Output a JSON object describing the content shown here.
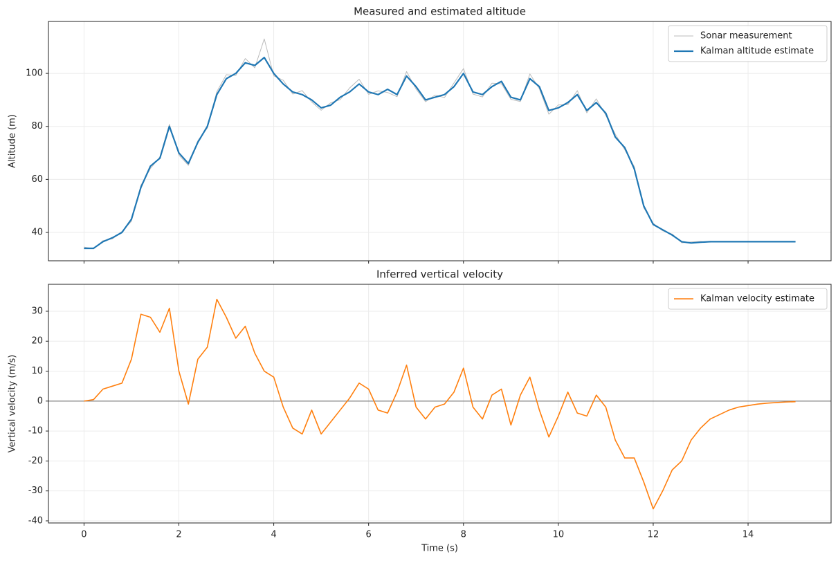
{
  "chart_data": [
    {
      "type": "line",
      "title": "Measured and estimated altitude",
      "ylabel": "Altitude (m)",
      "x": [
        0,
        0.2,
        0.4,
        0.6,
        0.8,
        1,
        1.2,
        1.4,
        1.6,
        1.8,
        2,
        2.2,
        2.4,
        2.6,
        2.8,
        3,
        3.2,
        3.4,
        3.6,
        3.8,
        4,
        4.2,
        4.4,
        4.6,
        4.8,
        5,
        5.2,
        5.4,
        5.6,
        5.8,
        6,
        6.2,
        6.4,
        6.6,
        6.8,
        7,
        7.2,
        7.4,
        7.6,
        7.8,
        8,
        8.2,
        8.4,
        8.6,
        8.8,
        9,
        9.2,
        9.4,
        9.6,
        9.8,
        10,
        10.2,
        10.4,
        10.6,
        10.8,
        11,
        11.2,
        11.4,
        11.6,
        11.8,
        12,
        12.2,
        12.4,
        12.6,
        12.8,
        13,
        13.2,
        13.4,
        13.6,
        13.8,
        14,
        14.2,
        14.4,
        14.6,
        14.8,
        15
      ],
      "series": [
        {
          "name": "Sonar measurement",
          "color": "#bbbbbb",
          "linewidth": 1,
          "values": [
            34.5,
            33.8,
            36.9,
            37.6,
            40.4,
            44.2,
            57.8,
            64.1,
            68.5,
            80.8,
            69.2,
            65.3,
            74.6,
            79.4,
            93.1,
            99.5,
            99.2,
            105.6,
            102.1,
            113,
            99.1,
            97.4,
            92.2,
            93.5,
            89.2,
            86.1,
            88.9,
            90.1,
            94.5,
            97.8,
            92.1,
            93.4,
            92.8,
            91.2,
            100.7,
            94.1,
            89.3,
            91.8,
            90.9,
            96.4,
            101.8,
            92.2,
            91.1,
            96.3,
            96.1,
            90.2,
            89.4,
            99.8,
            94.2,
            84.6,
            88.1,
            88.2,
            93.5,
            85.1,
            90.4,
            84.2,
            77.1,
            71.2,
            64.9,
            49.3,
            43.5,
            40.6,
            39.4,
            36.1,
            36.4,
            36.6,
            36.3,
            36.6,
            36.4,
            36.5,
            36.6,
            36.4,
            36.5,
            36.5,
            36.6,
            36.5
          ]
        },
        {
          "name": "Kalman altitude estimate",
          "color": "#1f77b4",
          "linewidth": 2.2,
          "values": [
            34,
            34,
            36.5,
            38,
            40,
            45,
            57,
            65,
            68,
            80,
            70,
            66,
            74,
            80,
            92,
            98,
            100,
            104,
            103,
            106,
            100,
            96,
            93,
            92,
            90,
            87,
            88,
            91,
            93,
            96,
            93,
            92,
            94,
            92,
            99,
            95,
            90,
            91,
            92,
            95,
            100,
            93,
            92,
            95,
            97,
            91,
            90,
            98,
            95,
            86,
            87,
            89,
            92,
            86,
            89,
            85,
            76,
            72,
            64,
            50,
            43,
            41,
            39,
            36.5,
            36,
            36.3,
            36.5,
            36.5,
            36.5,
            36.5,
            36.5,
            36.5,
            36.5,
            36.5,
            36.5,
            36.5
          ]
        }
      ],
      "xlim": [
        -0.75,
        15.75
      ],
      "xticks": [
        0,
        2,
        4,
        6,
        8,
        10,
        12,
        14
      ],
      "show_xtick_labels": false,
      "ylim": [
        29.3,
        119.6
      ],
      "yticks": [
        40,
        60,
        80,
        100
      ],
      "grid": true,
      "legend": "upper-right"
    },
    {
      "type": "line",
      "title": "Inferred vertical velocity",
      "xlabel": "Time (s)",
      "ylabel": "Vertical velocity (m/s)",
      "x": [
        0,
        0.2,
        0.4,
        0.6,
        0.8,
        1,
        1.2,
        1.4,
        1.6,
        1.8,
        2,
        2.2,
        2.4,
        2.6,
        2.8,
        3,
        3.2,
        3.4,
        3.6,
        3.8,
        4,
        4.2,
        4.4,
        4.6,
        4.8,
        5,
        5.2,
        5.4,
        5.6,
        5.8,
        6,
        6.2,
        6.4,
        6.6,
        6.8,
        7,
        7.2,
        7.4,
        7.6,
        7.8,
        8,
        8.2,
        8.4,
        8.6,
        8.8,
        9,
        9.2,
        9.4,
        9.6,
        9.8,
        10,
        10.2,
        10.4,
        10.6,
        10.8,
        11,
        11.2,
        11.4,
        11.6,
        11.8,
        12,
        12.2,
        12.4,
        12.6,
        12.8,
        13,
        13.2,
        13.4,
        13.6,
        13.8,
        14,
        14.2,
        14.4,
        14.6,
        14.8,
        15
      ],
      "series": [
        {
          "name": "Kalman velocity estimate",
          "color": "#ff7f0e",
          "linewidth": 1.6,
          "values": [
            0,
            0.5,
            4,
            5,
            6,
            14,
            29,
            28,
            23,
            31,
            10,
            -1,
            14,
            18,
            34,
            28,
            21,
            25,
            16,
            10,
            8,
            -2,
            -9,
            -11,
            -3,
            -11,
            -7,
            -3,
            1,
            6,
            4,
            -3,
            -4,
            3,
            12,
            -2,
            -6,
            -2,
            -1,
            3,
            11,
            -2,
            -6,
            2,
            4,
            -8,
            2,
            8,
            -3,
            -12,
            -5,
            3,
            -4,
            -5,
            2,
            -2,
            -13,
            -19,
            -19,
            -27,
            -36,
            -30,
            -23,
            -20,
            -13,
            -9,
            -6,
            -4.5,
            -3,
            -2,
            -1.5,
            -1,
            -0.7,
            -0.5,
            -0.3,
            -0.2
          ]
        }
      ],
      "xlim": [
        -0.75,
        15.75
      ],
      "xticks": [
        0,
        2,
        4,
        6,
        8,
        10,
        12,
        14
      ],
      "show_xtick_labels": true,
      "ylim": [
        -40.7,
        39.0
      ],
      "yticks": [
        -40,
        -30,
        -20,
        -10,
        0,
        10,
        20,
        30
      ],
      "grid": true,
      "zero_line": true,
      "legend": "upper-right"
    }
  ]
}
